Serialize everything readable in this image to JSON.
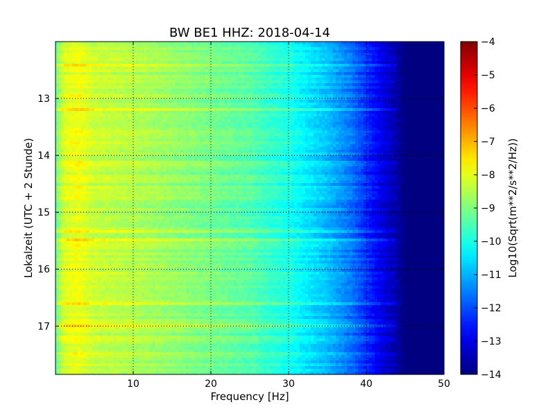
{
  "chart_data": {
    "type": "heatmap",
    "title": "BW BE1 HHZ: 2018-04-14",
    "xlabel": "Frequency [Hz]",
    "ylabel": "Lokalzeit (UTC + 2 Stunde)",
    "colorbar_label": "Log10(Sqrt(m**2/s**2/Hz))",
    "colormap": "jet",
    "xlim": [
      0,
      50
    ],
    "ylim": [
      17.85,
      12.0
    ],
    "y_inverted": true,
    "grid": true,
    "x_ticks": [
      10,
      20,
      30,
      40,
      50
    ],
    "x_tick_labels": [
      "10",
      "20",
      "30",
      "40",
      "50"
    ],
    "y_ticks": [
      13,
      14,
      15,
      16,
      17
    ],
    "y_tick_labels": [
      "13",
      "14",
      "15",
      "16",
      "17"
    ],
    "color_range": [
      -14,
      -4
    ],
    "colorbar_ticks": [
      -4,
      -5,
      -6,
      -7,
      -8,
      -9,
      -10,
      -11,
      -12,
      -13,
      -14
    ],
    "colorbar_tick_labels": [
      "−4",
      "−5",
      "−6",
      "−7",
      "−8",
      "−9",
      "−10",
      "−11",
      "−12",
      "−13",
      "−14"
    ],
    "spectrum_profile": {
      "frequency_hz": [
        0,
        1,
        2,
        3,
        5,
        10,
        15,
        20,
        25,
        28,
        30,
        32,
        35,
        38,
        40,
        42,
        44,
        45,
        46,
        50
      ],
      "log10_amplitude": [
        -9.3,
        -8.2,
        -8.0,
        -7.9,
        -8.3,
        -8.5,
        -8.8,
        -9.1,
        -9.4,
        -9.8,
        -10.0,
        -10.4,
        -10.9,
        -11.6,
        -12.3,
        -13.0,
        -13.6,
        -14.0,
        -14.0,
        -14.0
      ]
    }
  }
}
